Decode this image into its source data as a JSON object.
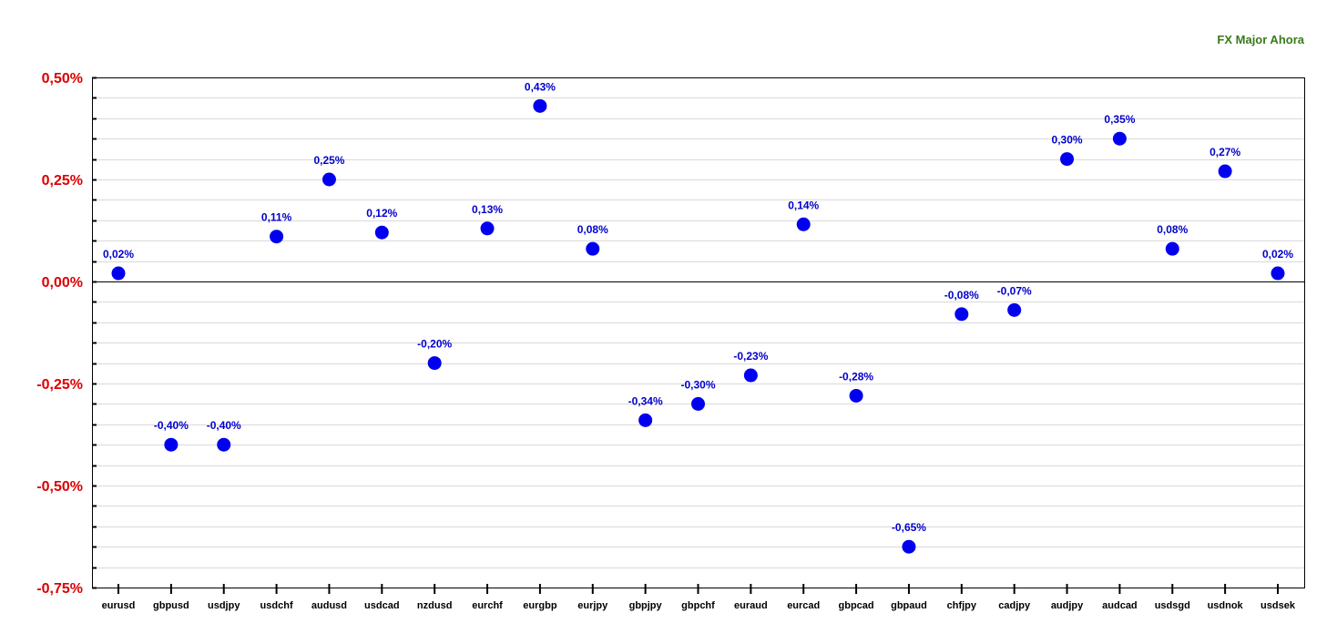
{
  "chart_data": {
    "type": "scatter",
    "title": "FX Major Ahora",
    "xlabel": "",
    "ylabel": "",
    "categories": [
      "eurusd",
      "gbpusd",
      "usdjpy",
      "usdchf",
      "audusd",
      "usdcad",
      "nzdusd",
      "eurchf",
      "eurgbp",
      "eurjpy",
      "gbpjpy",
      "gbpchf",
      "euraud",
      "eurcad",
      "gbpcad",
      "gbpaud",
      "chfjpy",
      "cadjpy",
      "audjpy",
      "audcad",
      "usdsgd",
      "usdnok",
      "usdsek"
    ],
    "values": [
      0.02,
      -0.4,
      -0.4,
      0.11,
      0.25,
      0.12,
      -0.2,
      0.13,
      0.43,
      0.08,
      -0.34,
      -0.3,
      -0.23,
      0.14,
      -0.28,
      -0.65,
      -0.08,
      -0.07,
      0.3,
      0.35,
      0.08,
      0.27,
      0.02
    ],
    "data_labels": [
      "0,02%",
      "-0,40%",
      "-0,40%",
      "0,11%",
      "0,25%",
      "0,12%",
      "-0,20%",
      "0,13%",
      "0,43%",
      "0,08%",
      "-0,34%",
      "-0,30%",
      "-0,23%",
      "0,14%",
      "-0,28%",
      "-0,65%",
      "-0,08%",
      "-0,07%",
      "0,30%",
      "0,35%",
      "0,08%",
      "0,27%",
      "0,02%"
    ],
    "ylim": [
      -0.75,
      0.5
    ],
    "yticks": [
      0.5,
      0.25,
      0.0,
      -0.25,
      -0.5,
      -0.75
    ],
    "ytick_labels": [
      "0,50%",
      "0,25%",
      "0,00%",
      "-0,25%",
      "-0,50%",
      "-0,75%"
    ],
    "grid": true,
    "legend": "none",
    "colors": {
      "marker": "#0000ee",
      "data_label": "#0000cc",
      "ytick_label": "#dd0000",
      "title": "#3a7a1c"
    }
  }
}
